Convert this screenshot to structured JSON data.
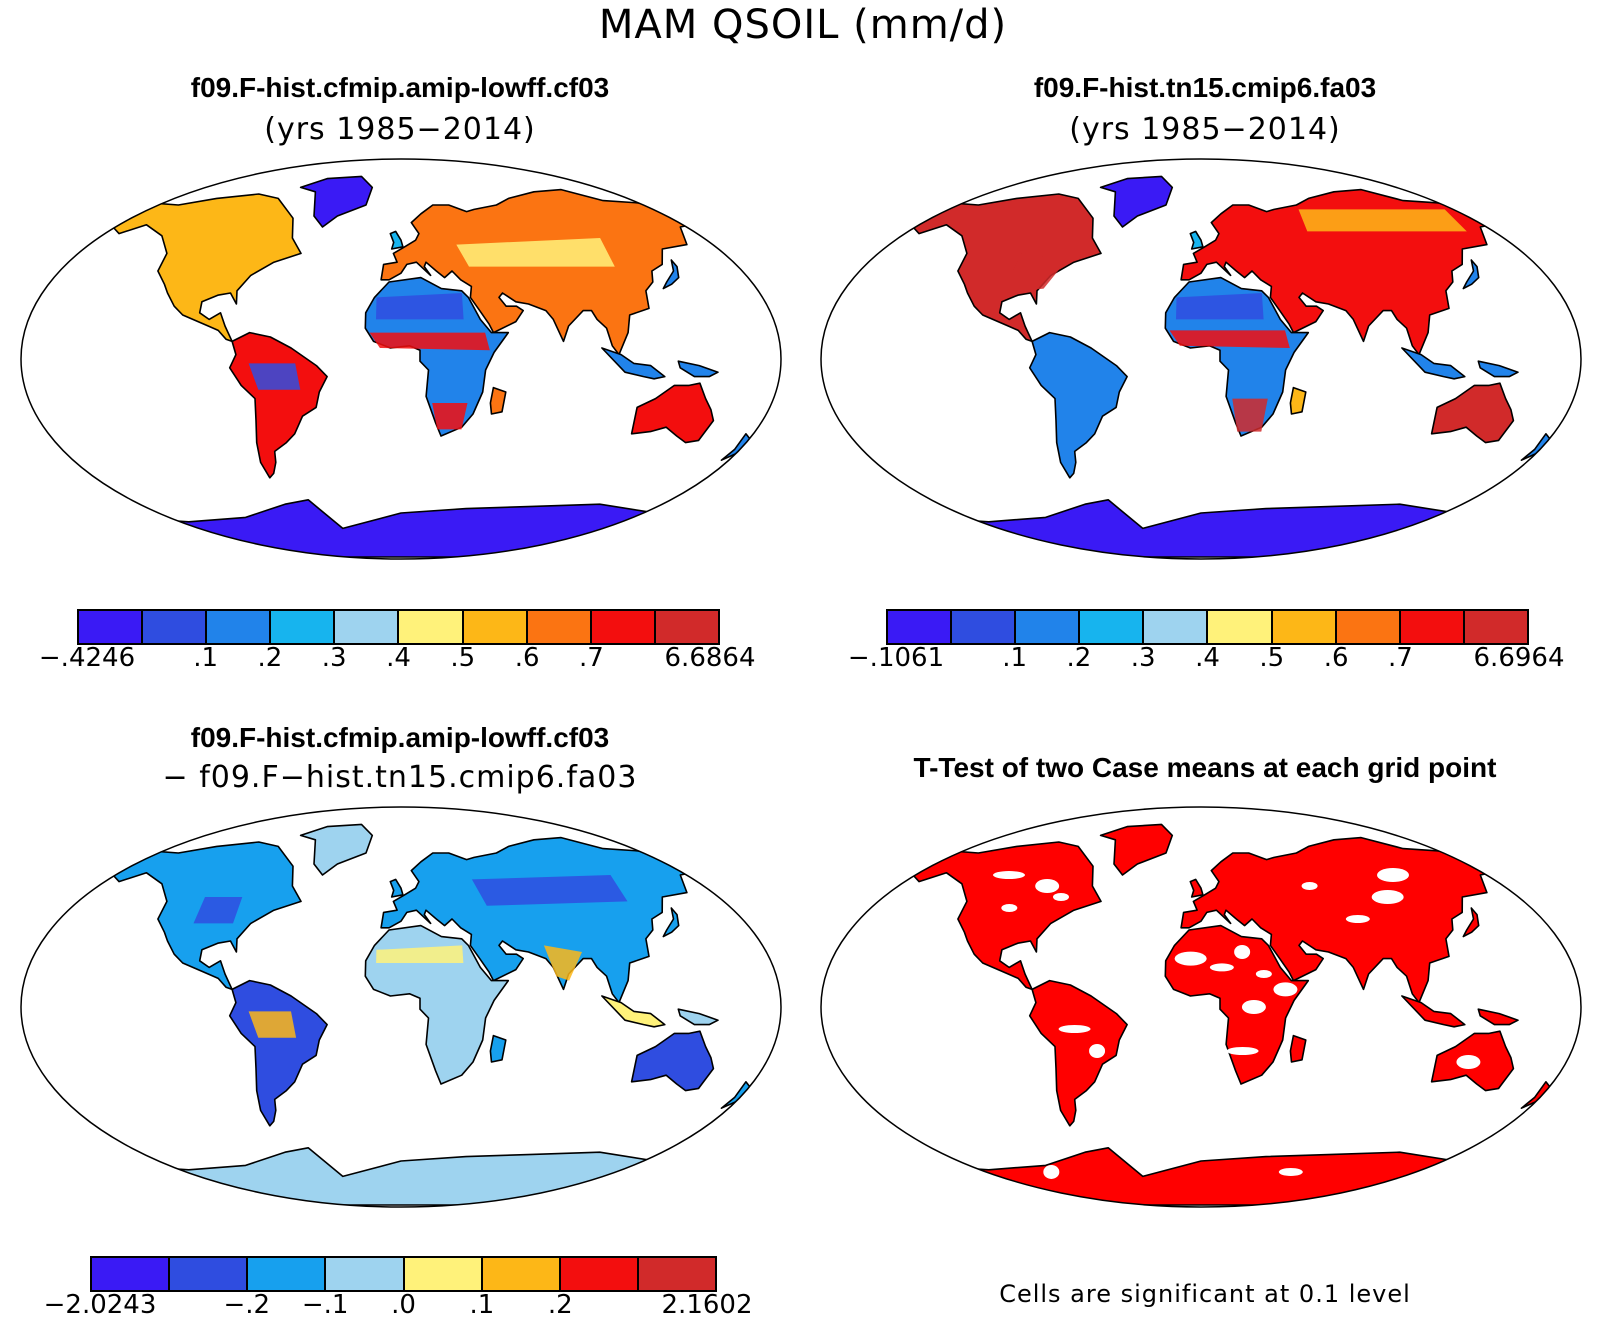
{
  "figure": {
    "title": "MAM QSOIL (mm/d)"
  },
  "panels": [
    {
      "title": "f09.F-hist.cfmip.amip-lowff.cf03",
      "subtitle": "(yrs 1985−2014)",
      "colorbar": {
        "labels": [
          "−.4246",
          ".1",
          ".2",
          ".3",
          ".4",
          ".5",
          ".6",
          ".7",
          "6.6864"
        ],
        "colors": [
          "#3a1af5",
          "#2f4de0",
          "#2183ea",
          "#17b4ee",
          "#9ed3ef",
          "#fff27a",
          "#fdb717",
          "#fb7412",
          "#f30e0e",
          "#d12a2a"
        ]
      }
    },
    {
      "title": "f09.F-hist.tn15.cmip6.fa03",
      "subtitle": "(yrs 1985−2014)",
      "colorbar": {
        "labels": [
          "−.1061",
          ".1",
          ".2",
          ".3",
          ".4",
          ".5",
          ".6",
          ".7",
          "6.6964"
        ],
        "colors": [
          "#3a1af5",
          "#2f4de0",
          "#2183ea",
          "#17b4ee",
          "#9ed3ef",
          "#fff27a",
          "#fdb717",
          "#fb7412",
          "#f30e0e",
          "#d12a2a"
        ]
      }
    },
    {
      "title": "f09.F-hist.cfmip.amip-lowff.cf03",
      "subtitle": "− f09.F−hist.tn15.cmip6.fa03",
      "colorbar": {
        "labels": [
          "−2.0243",
          "−.2",
          "−.1",
          ".0",
          ".1",
          ".2",
          "2.1602"
        ],
        "colors": [
          "#3a1af5",
          "#2f4de0",
          "#17a0ee",
          "#9ed3ef",
          "#fff27a",
          "#fdb717",
          "#f30e0e",
          "#d12a2a"
        ]
      }
    },
    {
      "title": "T-Test of two Case means at each grid point",
      "note": "Cells are significant at 0.1 level",
      "color": "#ff0000"
    }
  ]
}
